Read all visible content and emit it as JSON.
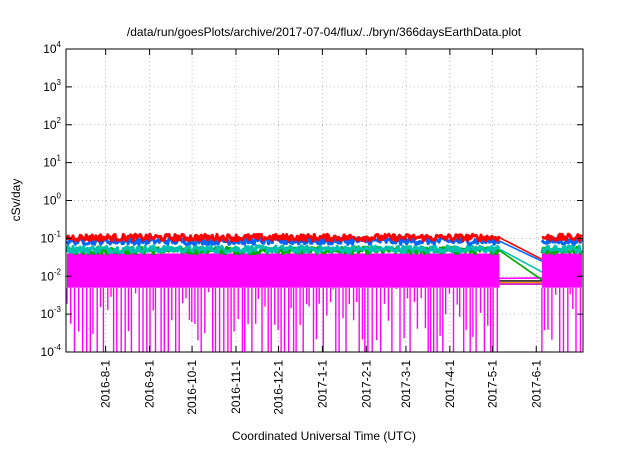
{
  "chart_data": {
    "type": "line",
    "title": "/data/run/goesPlots/archive/2017-07-04/flux/../bryn/366daysEarthData.plot",
    "xlabel": "Coordinated Universal Time (UTC)",
    "ylabel": "cSv/day",
    "yscale": "log",
    "ylim": [
      0.0001,
      10000
    ],
    "xlim": [
      "2016-07-04",
      "2017-07-04"
    ],
    "grid": true,
    "y_ticks": [
      {
        "base": "10",
        "exp": "4"
      },
      {
        "base": "10",
        "exp": "3"
      },
      {
        "base": "10",
        "exp": "2"
      },
      {
        "base": "10",
        "exp": "1"
      },
      {
        "base": "10",
        "exp": "0"
      },
      {
        "base": "10",
        "exp": "-1"
      },
      {
        "base": "10",
        "exp": "-2"
      },
      {
        "base": "10",
        "exp": "-3"
      },
      {
        "base": "10",
        "exp": "-4"
      }
    ],
    "x_ticks": [
      "2016-8-1",
      "2016-9-1",
      "2016-10-1",
      "2016-11-1",
      "2016-12-1",
      "2017-1-1",
      "2017-2-1",
      "2017-3-1",
      "2017-4-1",
      "2017-5-1",
      "2017-6-1"
    ],
    "data_gap": {
      "start": "2017-05-06",
      "end": "2017-06-05"
    },
    "series": [
      {
        "color": "#ff0000",
        "level": 0.105,
        "gap_end_level": 0.028
      },
      {
        "color": "#0066ff",
        "level": 0.085,
        "gap_end_level": 0.025
      },
      {
        "color": "#00c0b0",
        "level": 0.052,
        "gap_end_level": 0.013
      },
      {
        "color": "#00aa00",
        "level": 0.048,
        "gap_end_level": 0.008
      },
      {
        "color": "#ff00ff",
        "level": 0.04,
        "min": 0.0001,
        "floor": 0.005,
        "gap_end_level": 0.009
      }
    ]
  }
}
